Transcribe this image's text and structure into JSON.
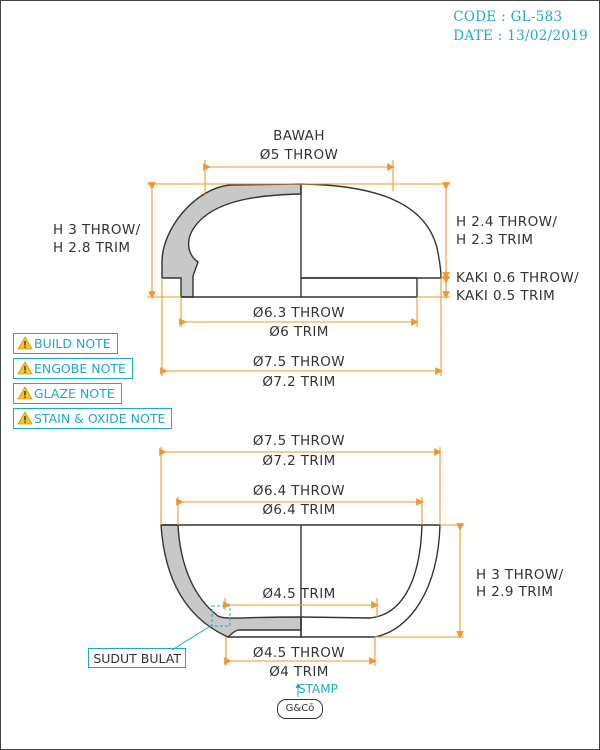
{
  "header": {
    "code": "CODE : GL-583",
    "date": "DATE : 13/02/2019"
  },
  "top_view": {
    "bawah_label": "BAWAH",
    "top_width": "Ø5 THROW",
    "height_left_1": "H 3 THROW/",
    "height_left_2": "H 2.8 TRIM",
    "height_right_1": "H 2.4 THROW/",
    "height_right_2": "H 2.3 TRIM",
    "foot_1": "KAKI 0.6 THROW/",
    "foot_2": "KAKI 0.5 TRIM",
    "mid_width_1": "Ø6.3 THROW",
    "mid_width_2": "Ø6 TRIM",
    "outer_width_1": "Ø7.5 THROW",
    "outer_width_2": "Ø7.2 TRIM"
  },
  "notes": [
    {
      "label": "BUILD NOTE"
    },
    {
      "label": "ENGOBE NOTE"
    },
    {
      "label": "GLAZE NOTE"
    },
    {
      "label": "STAIN & OXIDE NOTE"
    }
  ],
  "bottom_view": {
    "outer_width_1": "Ø7.5 THROW",
    "outer_width_2": "Ø7.2 TRIM",
    "rim_width_1": "Ø6.4 THROW",
    "rim_width_2": "Ø6.4 TRIM",
    "inner_width": "Ø4.5 TRIM",
    "height_1": "H 3 THROW/",
    "height_2": "H 2.9 TRIM",
    "base_width_1": "Ø4.5 THROW",
    "base_width_2": "Ø4 TRIM",
    "callout": "SUDUT BULAT",
    "stamp_label": "STAMP",
    "stamp_logo": "G&Cō"
  },
  "colors": {
    "dimension": "#f0962e",
    "accent": "#1fa9c9",
    "fill": "#c8c8c8",
    "line": "#333333"
  }
}
